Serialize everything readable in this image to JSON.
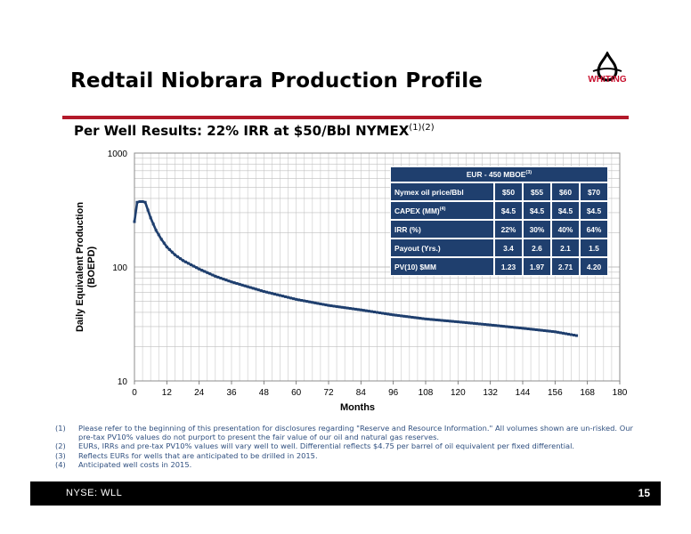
{
  "slide": {
    "title": "Redtail Niobrara Production Profile",
    "subtitle": "Per Well Results: 22% IRR at $50/Bbl NYMEX",
    "subtitle_sup": "(1)(2)",
    "logo_text": "WHITING",
    "accent_color": "#b3192a",
    "logo_color": "#c8102e"
  },
  "table": {
    "header": "EUR - 450 MBOE",
    "header_sup": "(3)",
    "rows": [
      {
        "label": "Nymex oil price/Bbl",
        "sup": "",
        "values": [
          "$50",
          "$55",
          "$60",
          "$70"
        ]
      },
      {
        "label": "CAPEX (MM)",
        "sup": "(4)",
        "values": [
          "$4.5",
          "$4.5",
          "$4.5",
          "$4.5"
        ]
      },
      {
        "label": "IRR (%)",
        "sup": "",
        "values": [
          "22%",
          "30%",
          "40%",
          "64%"
        ]
      },
      {
        "label": "Payout (Yrs.)",
        "sup": "",
        "values": [
          "3.4",
          "2.6",
          "2.1",
          "1.5"
        ]
      },
      {
        "label": "PV(10) $MM",
        "sup": "",
        "values": [
          "1.23",
          "1.97",
          "2.71",
          "4.20"
        ]
      }
    ],
    "color": "#1f3f6e"
  },
  "chart_data": {
    "type": "line",
    "xlabel": "Months",
    "ylabel": "Daily Equivalent Production (BOEPD)",
    "xlim": [
      0,
      180
    ],
    "ylim": [
      10,
      1000
    ],
    "yscale": "log",
    "xticks": [
      0,
      12,
      24,
      36,
      48,
      60,
      72,
      84,
      96,
      108,
      120,
      132,
      144,
      156,
      168,
      180
    ],
    "yticks": [
      10,
      100,
      1000
    ],
    "grid": true,
    "series_color": "#1f3f6e",
    "series": [
      {
        "x": [
          0,
          1,
          2,
          3,
          4,
          6,
          8,
          10,
          12,
          15,
          18,
          24,
          30,
          36,
          48,
          60,
          72,
          84,
          96,
          108,
          120,
          132,
          144,
          156,
          164
        ],
        "values": [
          250,
          370,
          375,
          375,
          370,
          270,
          210,
          175,
          150,
          128,
          114,
          96,
          83,
          74,
          61,
          52,
          46,
          42,
          38,
          35,
          33,
          31,
          29,
          27,
          25
        ]
      }
    ]
  },
  "footnotes": [
    {
      "num": "(1)",
      "text": "Please refer to the beginning of this presentation for disclosures regarding \"Reserve and Resource Information.\"  All volumes shown are un-risked.  Our pre-tax PV10% values do not purport to present the fair value of our oil and natural gas reserves."
    },
    {
      "num": "(2)",
      "text": "EURs, IRRs and pre-tax PV10% values will vary well to well.  Differential reflects $4.75 per barrel of oil equivalent per fixed differential."
    },
    {
      "num": "(3)",
      "text": "Reflects EURs for wells that are anticipated to be drilled in 2015."
    },
    {
      "num": "(4)",
      "text": "Anticipated well costs in 2015."
    }
  ],
  "footer": {
    "ticker": "NYSE: WLL",
    "page": "15"
  }
}
